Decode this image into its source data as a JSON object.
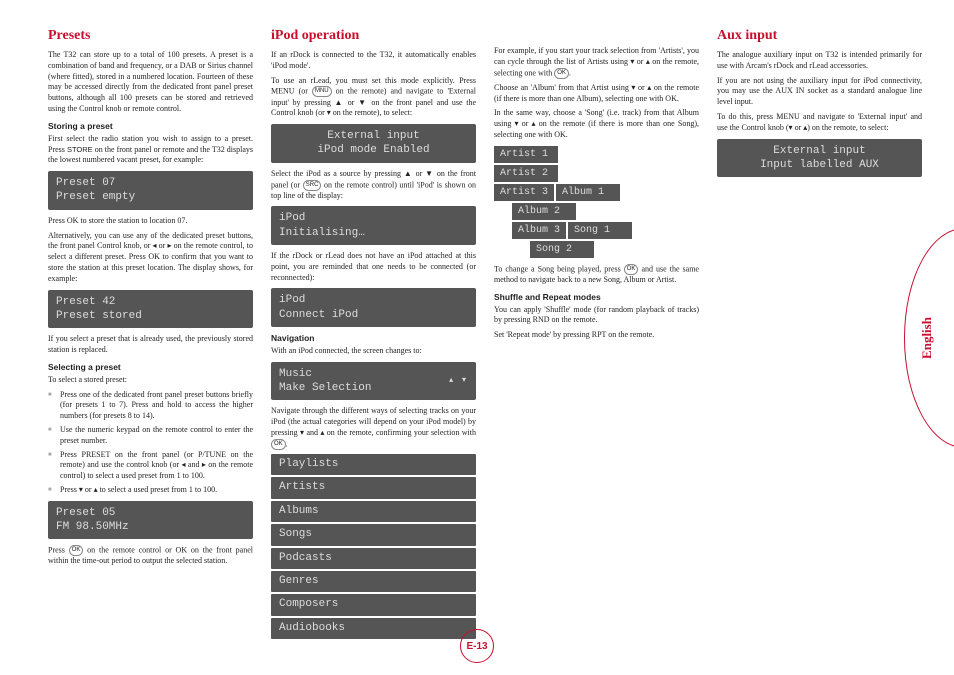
{
  "lang": "English",
  "footer": "E-13",
  "col1": {
    "title": "Presets",
    "intro": "The T32 can store up to a total of 100 presets. A preset is a combination of band and frequency, or a DAB or Sirius channel (where fitted), stored in a numbered location. Fourteen of these may be accessed directly from the dedicated front panel preset buttons, although all 100 presets can be stored and retrieved using the Control knob or remote control.",
    "h1": "Storing a preset",
    "p1a": "First select the radio station you wish to assign to a preset. Press ",
    "p1b": " on the front panel or remote and the T32 displays the lowest numbered vacant preset, for example:",
    "lcd1a": "Preset 07",
    "lcd1b": "Preset empty",
    "p2": "Press OK to store the station to location 07.",
    "p3": "Alternatively, you can use any of the dedicated preset buttons, the front panel Control knob, or ◂ or ▸ on the remote control, to select a different preset. Press OK to confirm that you want to store the station at this preset location. The display shows, for example:",
    "lcd2a": "Preset 42",
    "lcd2b": "Preset stored",
    "p4": "If you select a preset that is already used, the previously stored station is replaced.",
    "h2": "Selecting a preset",
    "p5": "To select a stored preset:",
    "li1": "Press one of the dedicated front panel preset buttons briefly (for presets 1 to 7). Press and hold to access the higher numbers (for presets 8 to 14).",
    "li2": "Use the numeric keypad on the remote control to enter the preset number.",
    "li3": "Press PRESET on the front panel (or P/TUNE on the remote) and use the control knob (or ◂ and ▸ on the remote control) to select a used preset from 1 to 100.",
    "li4": "Press ▾ or ▴ to select a used preset from 1 to 100.",
    "lcd3a": "Preset 05",
    "lcd3b": "FM 98.50MHz",
    "p6a": "Press ",
    "p6b": " on the remote control or OK on the front panel within the time-out period to output the selected station."
  },
  "col2": {
    "title": "iPod operation",
    "p1": "If an rDock is connected to the T32, it automatically enables 'iPod mode'.",
    "p2a": "To use an rLead, you must set this mode explicitly. Press MENU (or ",
    "p2b": " on the remote) and navigate to 'External input' by pressing ▲ or ▼ on the front panel and use the Control knob (or ▾ on the remote), to select:",
    "lcd1a": "External input",
    "lcd1b": "iPod mode Enabled",
    "p3a": "Select the iPod as a source by pressing ▲ or ▼ on the front panel (or ",
    "p3b": " on the remote control) until 'iPod' is shown on top line of the display:",
    "lcd2a": "iPod",
    "lcd2b": "Initialising…",
    "p4": "If the rDock or rLead does not have an iPod attached at this point, you are reminded that one needs to be connected (or reconnected):",
    "lcd3a": "iPod",
    "lcd3b": "Connect iPod",
    "h1": "Navigation",
    "p5": "With an iPod connected, the screen changes to:",
    "lcd4a": "Music",
    "lcd4b": "Make Selection",
    "p6a": "Navigate through the different ways of selecting tracks on your iPod (the actual categories will depend on your iPod model) by pressing ▾ and ▴ on the remote, confirming your selection with ",
    "p6b": ".",
    "list": [
      "Playlists",
      "Artists",
      "Albums",
      "Songs",
      "Podcasts",
      "Genres",
      "Composers",
      "Audiobooks"
    ]
  },
  "col3": {
    "p1a": "For example, if you start your track selection from 'Artists', you can cycle through the list of Artists using ▾ or ▴ on the remote, selecting one with ",
    "p1b": ".",
    "p2": "Choose an 'Album' from that Artist using ▾ or ▴ on the remote (if there is more than one Album), selecting one with OK.",
    "p3": "In the same way, choose a 'Song' (i.e. track) from that Album using ▾ or ▴ on the remote (if there is more than one Song), selecting one with OK.",
    "artists": [
      "Artist 1",
      "Artist 2",
      "Artist 3"
    ],
    "albums": [
      "Album 1",
      "Album 2",
      "Album 3"
    ],
    "songs": [
      "Song 1",
      "Song 2"
    ],
    "p4a": "To change a Song being played, press ",
    "p4b": " and use the same method to navigate back to a new Song, Album or Artist.",
    "h1": "Shuffle and Repeat modes",
    "p5": "You can apply 'Shuffle' mode (for random playback of tracks) by pressing RND on the remote.",
    "p6": "Set 'Repeat mode' by pressing RPT on the remote."
  },
  "col4": {
    "title": "Aux input",
    "p1": "The analogue auxiliary input on T32 is intended primarily for use with Arcam's rDock and rLead accessories.",
    "p2": "If you are not using the auxiliary input for iPod connectivity, you may use the AUX IN socket as a standard analogue line level input.",
    "p3": "To do this, press MENU and navigate to 'External input' and use the Control knob (▾ or ▴) on the remote, to select:",
    "lcd1a": "External input",
    "lcd1b": "Input labelled AUX"
  }
}
